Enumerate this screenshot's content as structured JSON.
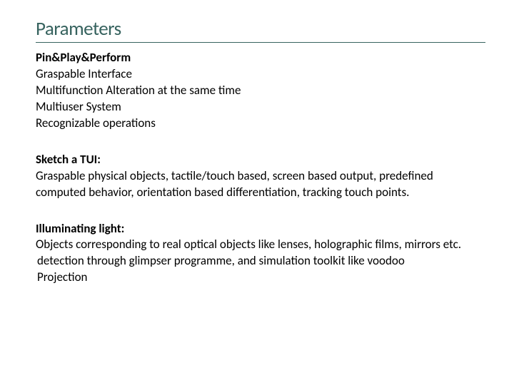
{
  "title": "Parameters",
  "section1": {
    "header": "Pin&Play&Perform",
    "items": [
      "Graspable Interface",
      "Multifunction Alteration at the same time",
      "Multiuser System",
      "Recognizable operations"
    ]
  },
  "section2": {
    "header": "Sketch a TUI:",
    "body": "Graspable physical objects, tactile/touch based, screen based output, predefined computed behavior, orientation based differentiation, tracking touch points."
  },
  "section3": {
    "header": "Illuminating light:",
    "body_lines": [
      "Objects corresponding to real optical objects like lenses, holographic films, mirrors etc.",
      " detection through glimpser programme, and simulation toolkit like voodoo",
      " Projection"
    ]
  },
  "colors": {
    "title_color": "#37635f",
    "text_color": "#000000",
    "background": "#ffffff"
  },
  "typography": {
    "title_fontsize": 27,
    "body_fontsize": 17,
    "font_family": "Calibri"
  }
}
